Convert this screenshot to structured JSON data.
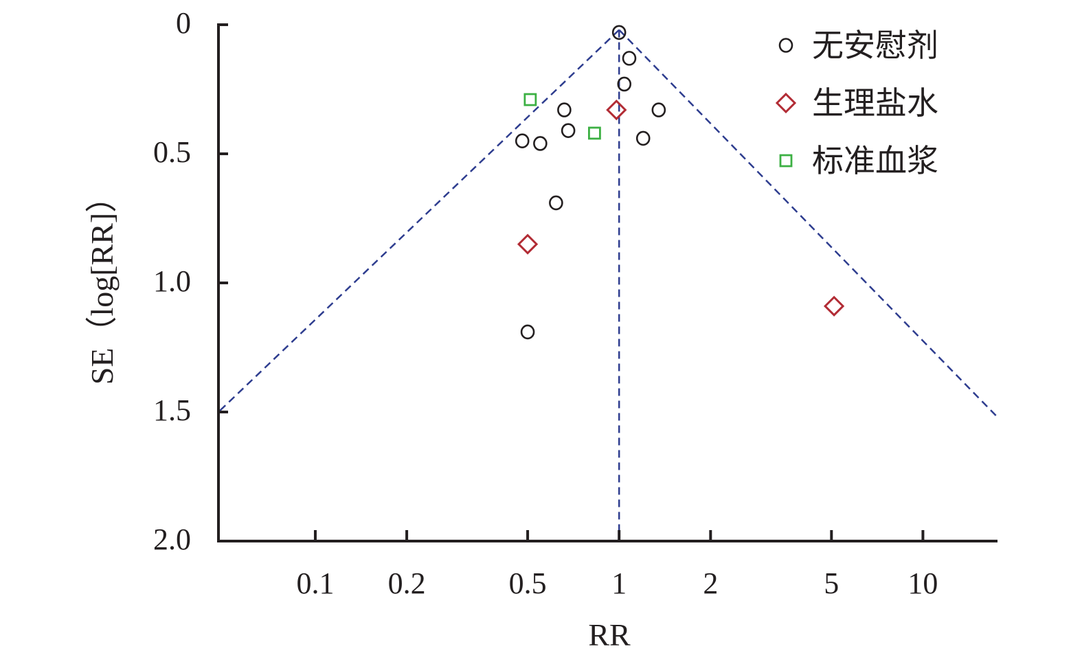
{
  "chart_data": {
    "type": "scatter",
    "title": "",
    "xlabel": "RR",
    "ylabel": "SE（log[RR]）",
    "x_scale": "log",
    "x_ticks": [
      0.1,
      0.2,
      0.5,
      1,
      2,
      5,
      10
    ],
    "x_tick_labels": [
      "0.1",
      "0.2",
      "0.5",
      "1",
      "2",
      "5",
      "10"
    ],
    "xlim": [
      0.048,
      17.6
    ],
    "y_ticks": [
      0,
      0.5,
      1.0,
      1.5,
      2.0
    ],
    "y_tick_labels": [
      "0",
      "0.5",
      "1.0",
      "1.5",
      "2.0"
    ],
    "ylim": [
      0,
      2.0
    ],
    "y_inverted": true,
    "grid": false,
    "legend_position": "top-right",
    "reference_line_x": 1,
    "funnel_limits": "95% pseudo-confidence limits (dashed)",
    "series": [
      {
        "name": "无安慰剂",
        "marker": "circle",
        "color": "#231f20",
        "points": [
          {
            "x": 1.0,
            "y": 0.03
          },
          {
            "x": 1.08,
            "y": 0.13
          },
          {
            "x": 1.04,
            "y": 0.23
          },
          {
            "x": 0.66,
            "y": 0.33
          },
          {
            "x": 1.35,
            "y": 0.33
          },
          {
            "x": 0.68,
            "y": 0.41
          },
          {
            "x": 0.48,
            "y": 0.45
          },
          {
            "x": 0.55,
            "y": 0.46
          },
          {
            "x": 1.2,
            "y": 0.44
          },
          {
            "x": 0.62,
            "y": 0.69
          },
          {
            "x": 0.5,
            "y": 1.19
          }
        ]
      },
      {
        "name": "生理盐水",
        "marker": "diamond",
        "color": "#b22c35",
        "points": [
          {
            "x": 0.98,
            "y": 0.33
          },
          {
            "x": 0.5,
            "y": 0.85
          },
          {
            "x": 5.1,
            "y": 1.09
          }
        ]
      },
      {
        "name": "标准血浆",
        "marker": "square",
        "color": "#3cb043",
        "points": [
          {
            "x": 0.51,
            "y": 0.29
          },
          {
            "x": 0.83,
            "y": 0.42
          }
        ]
      }
    ],
    "colors": {
      "axis": "#231f20",
      "funnel_line": "#2e3d8f"
    }
  }
}
